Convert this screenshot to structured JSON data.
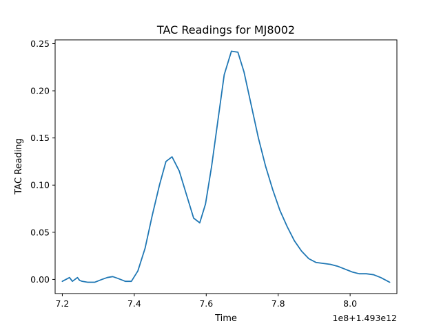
{
  "chart_data": {
    "type": "line",
    "title": "TAC Readings for MJ8002",
    "xlabel": "Time",
    "ylabel": "TAC Reading",
    "x_offset_label": "1e8+1.493e12",
    "xlim": [
      7.18,
      8.13
    ],
    "ylim": [
      -0.015,
      0.254
    ],
    "x_ticks": [
      7.2,
      7.4,
      7.6,
      7.8,
      8.0
    ],
    "x_tick_labels": [
      "7.2",
      "7.4",
      "7.6",
      "7.8",
      "8.0"
    ],
    "y_ticks": [
      0.0,
      0.05,
      0.1,
      0.15,
      0.2,
      0.25
    ],
    "y_tick_labels": [
      "0.00",
      "0.05",
      "0.10",
      "0.15",
      "0.20",
      "0.25"
    ],
    "grid": false,
    "series": [
      {
        "color": "#1f77b4",
        "x": [
          7.2,
          7.22,
          7.228,
          7.235,
          7.242,
          7.248,
          7.255,
          7.27,
          7.29,
          7.31,
          7.325,
          7.34,
          7.355,
          7.375,
          7.392,
          7.41,
          7.43,
          7.45,
          7.47,
          7.488,
          7.505,
          7.525,
          7.545,
          7.565,
          7.582,
          7.598,
          7.615,
          7.633,
          7.65,
          7.67,
          7.688,
          7.705,
          7.725,
          7.745,
          7.765,
          7.785,
          7.805,
          7.825,
          7.845,
          7.865,
          7.885,
          7.905,
          7.925,
          7.945,
          7.965,
          7.985,
          8.005,
          8.025,
          8.045,
          8.065,
          8.085,
          8.11
        ],
        "y": [
          -0.002,
          0.002,
          -0.002,
          0.0,
          0.002,
          -0.001,
          -0.002,
          -0.003,
          -0.003,
          0.0,
          0.002,
          0.003,
          0.001,
          -0.002,
          -0.002,
          0.009,
          0.033,
          0.068,
          0.1,
          0.125,
          0.13,
          0.115,
          0.09,
          0.065,
          0.06,
          0.08,
          0.12,
          0.17,
          0.217,
          0.242,
          0.241,
          0.22,
          0.185,
          0.15,
          0.12,
          0.095,
          0.073,
          0.056,
          0.041,
          0.03,
          0.022,
          0.018,
          0.017,
          0.016,
          0.014,
          0.011,
          0.008,
          0.006,
          0.006,
          0.005,
          0.002,
          -0.003
        ]
      }
    ]
  }
}
